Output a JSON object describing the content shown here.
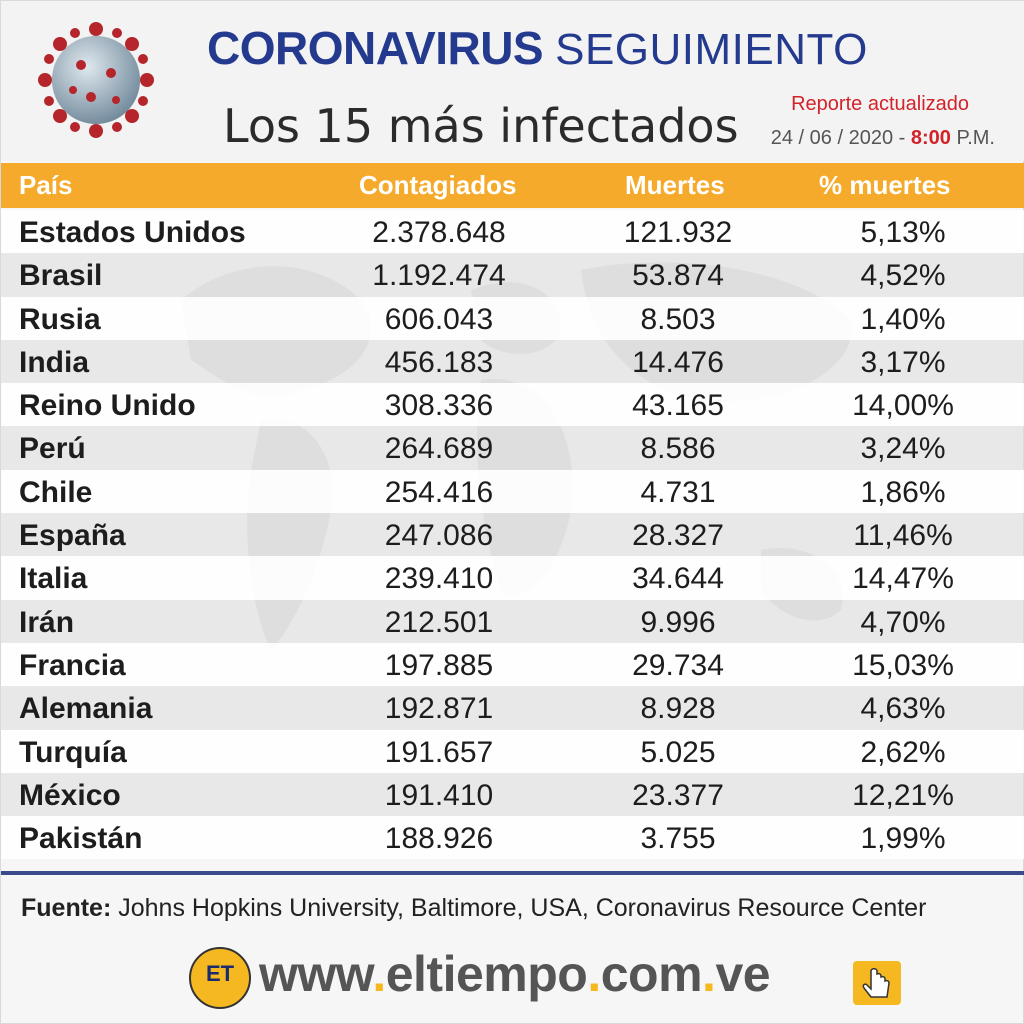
{
  "header": {
    "title_word1": "Coronavirus",
    "title_word2": "Seguimiento",
    "subtitle": "Los 15 más infectados",
    "report_label": "Reporte actualizado",
    "report_date": "24 / 06 / 2020 -",
    "report_time": "8:00",
    "report_ampm": "P.M."
  },
  "colors": {
    "title_blue": "#243a8e",
    "header_orange": "#f5aa2b",
    "accent_red": "#d2232a"
  },
  "chart_data": {
    "type": "table",
    "columns": [
      "País",
      "Contagiados",
      "Muertes",
      "% muertes"
    ],
    "rows": [
      [
        "Estados Unidos",
        "2.378.648",
        "121.932",
        "5,13%"
      ],
      [
        "Brasil",
        "1.192.474",
        "53.874",
        "4,52%"
      ],
      [
        "Rusia",
        "606.043",
        "8.503",
        "1,40%"
      ],
      [
        "India",
        "456.183",
        "14.476",
        "3,17%"
      ],
      [
        "Reino Unido",
        "308.336",
        "43.165",
        "14,00%"
      ],
      [
        "Perú",
        "264.689",
        "8.586",
        "3,24%"
      ],
      [
        "Chile",
        "254.416",
        "4.731",
        "1,86%"
      ],
      [
        "España",
        "247.086",
        "28.327",
        "11,46%"
      ],
      [
        "Italia",
        "239.410",
        "34.644",
        "14,47%"
      ],
      [
        "Irán",
        "212.501",
        "9.996",
        "4,70%"
      ],
      [
        "Francia",
        "197.885",
        "29.734",
        "15,03%"
      ],
      [
        "Alemania",
        "192.871",
        "8.928",
        "4,63%"
      ],
      [
        "Turquía",
        "191.657",
        "5.025",
        "2,62%"
      ],
      [
        "México",
        "191.410",
        "23.377",
        "12,21%"
      ],
      [
        "Pakistán",
        "188.926",
        "3.755",
        "1,99%"
      ]
    ]
  },
  "footer": {
    "source_label": "Fuente:",
    "source_text": "Johns Hopkins University, Baltimore, USA, Coronavirus Resource Center",
    "logo_text": "ET",
    "url_parts": [
      "www",
      ".",
      "eltiempo",
      ".",
      "com",
      ".",
      "ve"
    ]
  },
  "icons": {
    "virus": "coronavirus-illustration-icon",
    "hand": "hand-pointer-icon",
    "logo": "el-tiempo-logo-icon"
  }
}
